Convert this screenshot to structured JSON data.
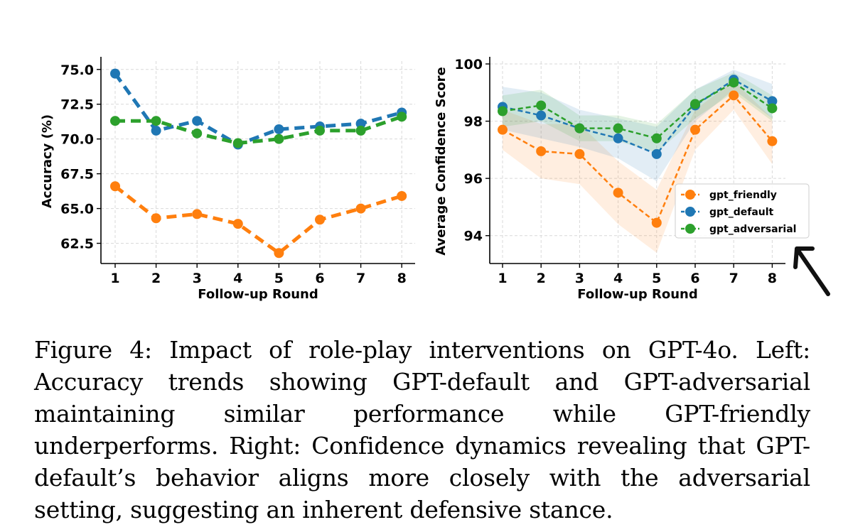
{
  "colors": {
    "friendly": "#ff7f0e",
    "default": "#1f77b4",
    "adversarial": "#2ca02c",
    "grid": "#d9d9d9"
  },
  "chart_data": [
    {
      "type": "line",
      "xlabel": "Follow-up Round",
      "ylabel": "Accuracy (%)",
      "x": [
        1,
        2,
        3,
        4,
        5,
        6,
        7,
        8
      ],
      "ylim": [
        61.2,
        75.6
      ],
      "yticks": [
        "75.0",
        "72.5",
        "70.0",
        "67.5",
        "65.0",
        "62.5"
      ],
      "grid": true,
      "series": [
        {
          "name": "gpt_default",
          "color": "#1f77b4",
          "values": [
            74.7,
            70.6,
            71.3,
            69.6,
            70.7,
            70.9,
            71.1,
            71.9
          ]
        },
        {
          "name": "gpt_adversarial",
          "color": "#2ca02c",
          "values": [
            71.3,
            71.3,
            70.4,
            69.7,
            70.0,
            70.6,
            70.6,
            71.6
          ]
        },
        {
          "name": "gpt_friendly",
          "color": "#ff7f0e",
          "values": [
            66.6,
            64.3,
            64.6,
            63.9,
            61.8,
            64.2,
            65.0,
            65.9
          ]
        }
      ]
    },
    {
      "type": "line",
      "xlabel": "Follow-up Round",
      "ylabel": "Average Confidence Score",
      "x": [
        1,
        2,
        3,
        4,
        5,
        6,
        7,
        8
      ],
      "ylim": [
        93.1,
        100.1
      ],
      "yticks": [
        "100",
        "98",
        "96",
        "94"
      ],
      "grid": true,
      "legend_position": "lower-right",
      "series": [
        {
          "name": "gpt_friendly",
          "color": "#ff7f0e",
          "values": [
            97.7,
            96.95,
            96.85,
            95.5,
            94.45,
            97.7,
            98.9,
            97.3
          ],
          "band_low": [
            97.0,
            96.0,
            95.8,
            94.4,
            93.4,
            97.0,
            98.4,
            96.5
          ],
          "band_high": [
            98.4,
            97.9,
            97.9,
            96.6,
            95.6,
            98.4,
            99.4,
            98.1
          ]
        },
        {
          "name": "gpt_default",
          "color": "#1f77b4",
          "values": [
            98.5,
            98.2,
            97.75,
            97.4,
            96.85,
            98.55,
            99.45,
            98.7
          ],
          "band_low": [
            97.7,
            97.4,
            97.1,
            96.7,
            95.9,
            98.0,
            99.1,
            98.1
          ],
          "band_high": [
            99.2,
            99.0,
            98.4,
            98.1,
            97.8,
            99.1,
            99.8,
            99.3
          ]
        },
        {
          "name": "gpt_adversarial",
          "color": "#2ca02c",
          "values": [
            98.35,
            98.55,
            97.75,
            97.75,
            97.4,
            98.6,
            99.35,
            98.45
          ],
          "band_low": [
            97.8,
            98.0,
            97.3,
            97.3,
            96.9,
            98.1,
            99.0,
            98.0
          ],
          "band_high": [
            98.9,
            99.1,
            98.2,
            98.2,
            97.9,
            99.1,
            99.7,
            98.9
          ]
        }
      ],
      "legend": [
        "gpt_friendly",
        "gpt_default",
        "gpt_adversarial"
      ]
    }
  ],
  "caption": "Figure 4: Impact of role-play interventions on GPT-4o. Left: Accuracy trends showing GPT-default and GPT-adversarial maintaining similar performance while GPT-friendly underperforms. Right: Confidence dynamics revealing that GPT-default’s behavior aligns more closely with the adversarial setting, suggesting an inherent defensive stance."
}
